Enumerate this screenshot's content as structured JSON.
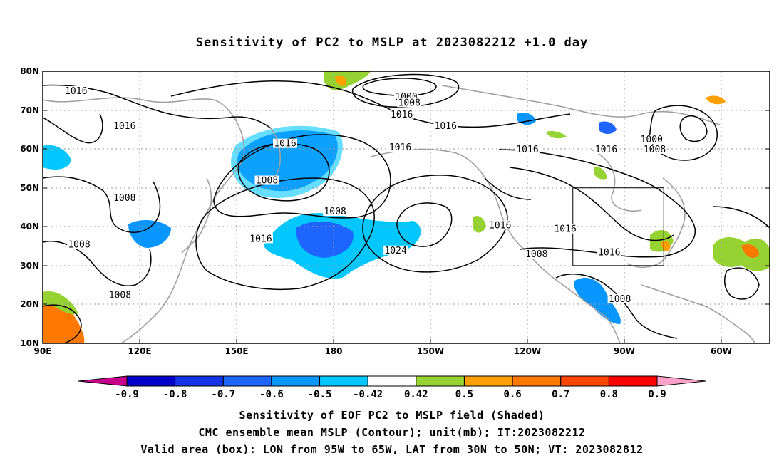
{
  "title": "Sensitivity of PC2 to MSLP at 2023082212 +1.0 day",
  "map": {
    "lon_labels": [
      "90E",
      "120E",
      "150E",
      "180",
      "150W",
      "120W",
      "90W",
      "60W"
    ],
    "lat_labels": [
      "10N",
      "20N",
      "30N",
      "40N",
      "50N",
      "60N",
      "70N",
      "80N"
    ],
    "contour_labels": [
      {
        "text": "1016",
        "lon": 101,
        "lat": 74.5
      },
      {
        "text": "1016",
        "lon": 117,
        "lat": 65.5
      },
      {
        "text": "1016",
        "lon": 170,
        "lat": 61
      },
      {
        "text": "1008",
        "lon": 164,
        "lat": 51.5
      },
      {
        "text": "1008",
        "lon": 117,
        "lat": 47
      },
      {
        "text": "1008",
        "lon": 186.5,
        "lat": 43.5
      },
      {
        "text": "1016",
        "lon": 162,
        "lat": 36.5
      },
      {
        "text": "1008",
        "lon": 102,
        "lat": 35
      },
      {
        "text": "1008",
        "lon": 115.5,
        "lat": 22
      },
      {
        "text": "1000",
        "lon": 210,
        "lat": 73
      },
      {
        "text": "1008",
        "lon": 211,
        "lat": 71.5
      },
      {
        "text": "1016",
        "lon": 208.5,
        "lat": 68.5
      },
      {
        "text": "1016",
        "lon": 223,
        "lat": 65.5
      },
      {
        "text": "1016",
        "lon": 208,
        "lat": 60
      },
      {
        "text": "1024",
        "lon": 206.5,
        "lat": 33.5
      },
      {
        "text": "1016",
        "lon": 241,
        "lat": 40
      },
      {
        "text": "1016",
        "lon": 250,
        "lat": 59.5
      },
      {
        "text": "1008",
        "lon": 253,
        "lat": 32.5
      },
      {
        "text": "1016",
        "lon": 262.5,
        "lat": 39
      },
      {
        "text": "1016",
        "lon": 276,
        "lat": 59.5
      },
      {
        "text": "1016",
        "lon": 277,
        "lat": 33
      },
      {
        "text": "1000",
        "lon": 291,
        "lat": 62
      },
      {
        "text": "1008",
        "lon": 292,
        "lat": 59.5
      },
      {
        "text": "1008",
        "lon": 280.5,
        "lat": 21
      }
    ],
    "box": {
      "lon_min": 265,
      "lon_max": 295,
      "lat_min": 30,
      "lat_max": 50
    }
  },
  "colorbar": {
    "labels": [
      "-0.9",
      "-0.8",
      "-0.7",
      "-0.6",
      "-0.5",
      "-0.42",
      "0.42",
      "0.5",
      "0.6",
      "0.7",
      "0.8",
      "0.9"
    ],
    "colors": [
      "#0000c8",
      "#1432e6",
      "#1e64ff",
      "#0a96ff",
      "#00c8ff",
      "#ffffff",
      "#96d232",
      "#ffa000",
      "#ff7800",
      "#ff4600",
      "#ff0000"
    ],
    "low_end_color": "#c8008c",
    "high_end_color": "#ffa0c8"
  },
  "footer": {
    "line1": "Sensitivity of EOF PC2 to MSLP field (Shaded)",
    "line2": "CMC ensemble mean MSLP (Contour); unit(mb); IT:2023082212",
    "line3": "Valid area (box): LON from 95W to 65W, LAT from 30N to 50N; VT: 2023082812"
  }
}
